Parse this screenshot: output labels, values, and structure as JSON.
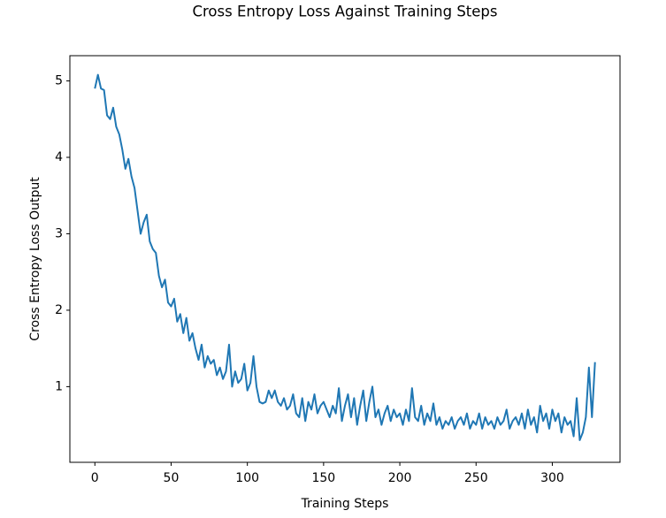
{
  "chart_data": {
    "type": "line",
    "title": "Cross Entropy Loss Against Training Steps",
    "x_label": "Training Steps",
    "y_label": "Cross Entropy Loss Output",
    "x": [
      0,
      2,
      4,
      6,
      8,
      10,
      12,
      14,
      16,
      18,
      20,
      22,
      24,
      26,
      28,
      30,
      32,
      34,
      36,
      38,
      40,
      42,
      44,
      46,
      48,
      50,
      52,
      54,
      56,
      58,
      60,
      62,
      64,
      66,
      68,
      70,
      72,
      74,
      76,
      78,
      80,
      82,
      84,
      86,
      88,
      90,
      92,
      94,
      96,
      98,
      100,
      102,
      104,
      106,
      108,
      110,
      112,
      114,
      116,
      118,
      120,
      122,
      124,
      126,
      128,
      130,
      132,
      134,
      136,
      138,
      140,
      142,
      144,
      146,
      148,
      150,
      152,
      154,
      156,
      158,
      160,
      162,
      164,
      166,
      168,
      170,
      172,
      174,
      176,
      178,
      180,
      182,
      184,
      186,
      188,
      190,
      192,
      194,
      196,
      198,
      200,
      202,
      204,
      206,
      208,
      210,
      212,
      214,
      216,
      218,
      220,
      222,
      224,
      226,
      228,
      230,
      232,
      234,
      236,
      238,
      240,
      242,
      244,
      246,
      248,
      250,
      252,
      254,
      256,
      258,
      260,
      262,
      264,
      266,
      268,
      270,
      272,
      274,
      276,
      278,
      280,
      282,
      284,
      286,
      288,
      290,
      292,
      294,
      296,
      298,
      300,
      302,
      304,
      306,
      308,
      310,
      312,
      314,
      316,
      318,
      320,
      322,
      324,
      326,
      328
    ],
    "series": [
      {
        "name": "loss",
        "color": "#1f77b4",
        "values": [
          4.9,
          5.08,
          4.9,
          4.88,
          4.55,
          4.5,
          4.65,
          4.4,
          4.3,
          4.1,
          3.85,
          3.98,
          3.75,
          3.6,
          3.3,
          3.0,
          3.15,
          3.25,
          2.9,
          2.8,
          2.75,
          2.45,
          2.3,
          2.4,
          2.1,
          2.05,
          2.15,
          1.85,
          1.95,
          1.7,
          1.9,
          1.6,
          1.7,
          1.5,
          1.35,
          1.55,
          1.25,
          1.4,
          1.3,
          1.35,
          1.15,
          1.25,
          1.1,
          1.2,
          1.55,
          1.0,
          1.2,
          1.05,
          1.1,
          1.3,
          0.95,
          1.05,
          1.4,
          1.0,
          0.8,
          0.78,
          0.8,
          0.95,
          0.85,
          0.95,
          0.8,
          0.75,
          0.85,
          0.7,
          0.75,
          0.9,
          0.65,
          0.6,
          0.85,
          0.55,
          0.8,
          0.7,
          0.9,
          0.65,
          0.75,
          0.8,
          0.7,
          0.6,
          0.75,
          0.65,
          0.98,
          0.55,
          0.75,
          0.9,
          0.6,
          0.85,
          0.5,
          0.75,
          0.95,
          0.55,
          0.8,
          1.0,
          0.6,
          0.7,
          0.5,
          0.65,
          0.75,
          0.55,
          0.7,
          0.6,
          0.65,
          0.5,
          0.7,
          0.55,
          0.98,
          0.6,
          0.55,
          0.75,
          0.5,
          0.65,
          0.55,
          0.78,
          0.5,
          0.6,
          0.45,
          0.55,
          0.5,
          0.6,
          0.45,
          0.55,
          0.6,
          0.5,
          0.65,
          0.45,
          0.55,
          0.5,
          0.65,
          0.45,
          0.6,
          0.5,
          0.55,
          0.45,
          0.6,
          0.5,
          0.55,
          0.7,
          0.45,
          0.55,
          0.6,
          0.5,
          0.65,
          0.45,
          0.7,
          0.5,
          0.6,
          0.4,
          0.75,
          0.55,
          0.65,
          0.45,
          0.7,
          0.55,
          0.65,
          0.4,
          0.6,
          0.5,
          0.55,
          0.35,
          0.85,
          0.3,
          0.4,
          0.6,
          1.25,
          0.6,
          1.32
        ]
      }
    ],
    "xlim": [
      -16.4,
      344.4
    ],
    "ylim": [
      0.01,
      5.33
    ],
    "xticks": [
      0,
      50,
      100,
      150,
      200,
      250,
      300
    ],
    "yticks": [
      1,
      2,
      3,
      4,
      5
    ],
    "grid": false
  }
}
